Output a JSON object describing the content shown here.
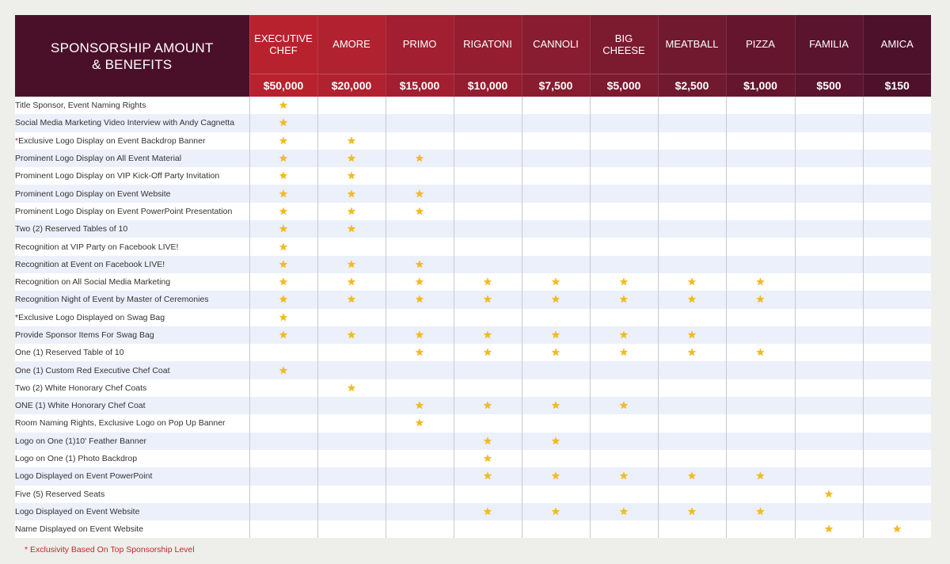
{
  "header": {
    "title_line1": "SPONSORSHIP AMOUNT",
    "title_line2": "& BENEFITS"
  },
  "levels": [
    {
      "name": "EXECUTIVE\nCHEF",
      "amount": "$50,000",
      "color": "#b8222f"
    },
    {
      "name": "AMORE",
      "amount": "$20,000",
      "color": "#b02230"
    },
    {
      "name": "PRIMO",
      "amount": "$15,000",
      "color": "#a11f30"
    },
    {
      "name": "RIGATONI",
      "amount": "$10,000",
      "color": "#941d30"
    },
    {
      "name": "CANNOLI",
      "amount": "$7,500",
      "color": "#881c30"
    },
    {
      "name": "BIG\nCHEESE",
      "amount": "$5,000",
      "color": "#7c1a30"
    },
    {
      "name": "MEATBALL",
      "amount": "$2,500",
      "color": "#70192f"
    },
    {
      "name": "PIZZA",
      "amount": "$1,000",
      "color": "#65162e"
    },
    {
      "name": "FAMILIA",
      "amount": "$500",
      "color": "#5a142d"
    },
    {
      "name": "AMICA",
      "amount": "$150",
      "color": "#4d112b"
    }
  ],
  "star_glyph": "★",
  "benefits": [
    {
      "label": "Title Sponsor, Event Naming Rights",
      "stars": [
        1,
        0,
        0,
        0,
        0,
        0,
        0,
        0,
        0,
        0
      ]
    },
    {
      "label": "Social Media Marketing Video Interview with Andy Cagnetta",
      "stars": [
        1,
        0,
        0,
        0,
        0,
        0,
        0,
        0,
        0,
        0
      ]
    },
    {
      "label": "Exclusive Logo Display on Event Backdrop Banner",
      "marker": "*",
      "stars": [
        1,
        1,
        0,
        0,
        0,
        0,
        0,
        0,
        0,
        0
      ]
    },
    {
      "label": "Prominent Logo Display on All Event Material",
      "stars": [
        1,
        1,
        1,
        0,
        0,
        0,
        0,
        0,
        0,
        0
      ]
    },
    {
      "label": "Prominent Logo Display on VIP Kick-Off Party Invitation",
      "stars": [
        1,
        1,
        0,
        0,
        0,
        0,
        0,
        0,
        0,
        0
      ]
    },
    {
      "label": "Prominent Logo Display on Event Website",
      "stars": [
        1,
        1,
        1,
        0,
        0,
        0,
        0,
        0,
        0,
        0
      ]
    },
    {
      "label": "Prominent Logo Display on Event PowerPoint Presentation",
      "stars": [
        1,
        1,
        1,
        0,
        0,
        0,
        0,
        0,
        0,
        0
      ]
    },
    {
      "label": "Two (2) Reserved Tables of 10",
      "stars": [
        1,
        1,
        0,
        0,
        0,
        0,
        0,
        0,
        0,
        0
      ]
    },
    {
      "label": "Recognition at VIP Party on Facebook LIVE!",
      "stars": [
        1,
        0,
        0,
        0,
        0,
        0,
        0,
        0,
        0,
        0
      ]
    },
    {
      "label": "Recognition at Event on Facebook LIVE!",
      "stars": [
        1,
        1,
        1,
        0,
        0,
        0,
        0,
        0,
        0,
        0
      ]
    },
    {
      "label": "Recognition on All Social Media Marketing",
      "stars": [
        1,
        1,
        1,
        1,
        1,
        1,
        1,
        1,
        0,
        0
      ]
    },
    {
      "label": "Recognition Night of Event by Master of Ceremonies",
      "stars": [
        1,
        1,
        1,
        1,
        1,
        1,
        1,
        1,
        0,
        0
      ]
    },
    {
      "label": "*Exclusive Logo Displayed on Swag Bag",
      "stars": [
        1,
        0,
        0,
        0,
        0,
        0,
        0,
        0,
        0,
        0
      ]
    },
    {
      "label": "Provide Sponsor Items For Swag Bag",
      "stars": [
        1,
        1,
        1,
        1,
        1,
        1,
        1,
        0,
        0,
        0
      ]
    },
    {
      "label": "One (1) Reserved Table of 10",
      "stars": [
        0,
        0,
        1,
        1,
        1,
        1,
        1,
        1,
        0,
        0
      ]
    },
    {
      "label": "One (1) Custom Red Executive Chef Coat",
      "stars": [
        1,
        0,
        0,
        0,
        0,
        0,
        0,
        0,
        0,
        0
      ]
    },
    {
      "label": "Two (2) White Honorary Chef Coats",
      "stars": [
        0,
        1,
        0,
        0,
        0,
        0,
        0,
        0,
        0,
        0
      ]
    },
    {
      "label": "ONE (1) White Honorary Chef Coat",
      "stars": [
        0,
        0,
        1,
        1,
        1,
        1,
        0,
        0,
        0,
        0
      ]
    },
    {
      "label": "Room Naming Rights, Exclusive Logo on Pop Up Banner",
      "stars": [
        0,
        0,
        1,
        0,
        0,
        0,
        0,
        0,
        0,
        0
      ]
    },
    {
      "label": "Logo on One (1)10' Feather Banner",
      "stars": [
        0,
        0,
        0,
        1,
        1,
        0,
        0,
        0,
        0,
        0
      ]
    },
    {
      "label": "Logo on One (1) Photo Backdrop",
      "stars": [
        0,
        0,
        0,
        1,
        0,
        0,
        0,
        0,
        0,
        0
      ]
    },
    {
      "label": "Logo Displayed on Event PowerPoint",
      "stars": [
        0,
        0,
        0,
        1,
        1,
        1,
        1,
        1,
        0,
        0
      ]
    },
    {
      "label": "Five (5) Reserved Seats",
      "stars": [
        0,
        0,
        0,
        0,
        0,
        0,
        0,
        0,
        1,
        0
      ]
    },
    {
      "label": "Logo Displayed on Event Website",
      "stars": [
        0,
        0,
        0,
        1,
        1,
        1,
        1,
        1,
        0,
        0
      ]
    },
    {
      "label": "Name Displayed on Event Website",
      "stars": [
        0,
        0,
        0,
        0,
        0,
        0,
        0,
        0,
        1,
        1
      ]
    }
  ],
  "footnote": "* Exclusivity Based On Top Sponsorship Level",
  "colors": {
    "header_left_bg": "#4b1029",
    "star": "#f3ba1c",
    "row_alt": "#ecf0fa",
    "footnote_red": "#c0272d"
  }
}
